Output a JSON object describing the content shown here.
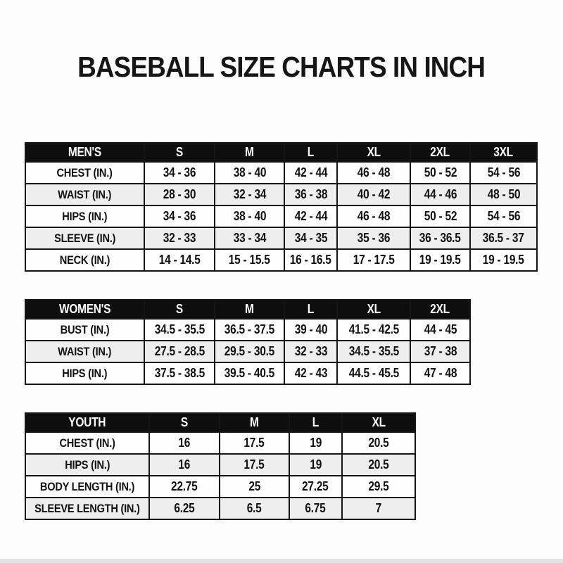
{
  "title": "BASEBALL SIZE CHARTS IN INCH",
  "colors": {
    "table_header_bg": "#0e0e0e",
    "table_header_text": "#ffffff",
    "row_stripe": "#eeeeee",
    "table_border": "#151515",
    "page_bg": "#fcfcfc",
    "bottom_strip": "#e3e3e3"
  },
  "tables": [
    {
      "id": "mens",
      "header_label": "MEN'S",
      "sizes": [
        "S",
        "M",
        "L",
        "XL",
        "2XL",
        "3XL"
      ],
      "rows": [
        {
          "label": "CHEST (IN.)",
          "values": [
            "34 - 36",
            "38 - 40",
            "42 - 44",
            "46 - 48",
            "50 - 52",
            "54 - 56"
          ]
        },
        {
          "label": "WAIST (IN.)",
          "values": [
            "28 - 30",
            "32 - 34",
            "36 - 38",
            "40 - 42",
            "44 - 46",
            "48 - 50"
          ]
        },
        {
          "label": "HIPS (IN.)",
          "values": [
            "34 - 36",
            "38 - 40",
            "42 - 44",
            "46 - 48",
            "50 - 52",
            "54 - 56"
          ]
        },
        {
          "label": "SLEEVE (IN.)",
          "values": [
            "32 - 33",
            "33 - 34",
            "34 - 35",
            "35 - 36",
            "36 - 36.5",
            "36.5 - 37"
          ]
        },
        {
          "label": "NECK (IN.)",
          "values": [
            "14 - 14.5",
            "15 - 15.5",
            "16 - 16.5",
            "17 - 17.5",
            "19 - 19.5",
            "19 - 19.5"
          ]
        }
      ]
    },
    {
      "id": "womens",
      "header_label": "WOMEN'S",
      "sizes": [
        "S",
        "M",
        "L",
        "XL",
        "2XL"
      ],
      "rows": [
        {
          "label": "BUST (IN.)",
          "values": [
            "34.5 - 35.5",
            "36.5 - 37.5",
            "39 - 40",
            "41.5 - 42.5",
            "44 - 45"
          ]
        },
        {
          "label": "WAIST (IN.)",
          "values": [
            "27.5 - 28.5",
            "29.5 - 30.5",
            "32 - 33",
            "34.5 - 35.5",
            "37 - 38"
          ]
        },
        {
          "label": "HIPS (IN.)",
          "values": [
            "37.5 - 38.5",
            "39.5 - 40.5",
            "42 - 43",
            "44.5 - 45.5",
            "47 - 48"
          ]
        }
      ]
    },
    {
      "id": "youth",
      "header_label": "YOUTH",
      "sizes": [
        "S",
        "M",
        "L",
        "XL"
      ],
      "rows": [
        {
          "label": "CHEST (IN.)",
          "values": [
            "16",
            "17.5",
            "19",
            "20.5"
          ]
        },
        {
          "label": "HIPS (IN.)",
          "values": [
            "16",
            "17.5",
            "19",
            "20.5"
          ]
        },
        {
          "label": "BODY LENGTH (IN.)",
          "values": [
            "22.75",
            "25",
            "27.25",
            "29.5"
          ]
        },
        {
          "label": "SLEEVE LENGTH (IN.)",
          "values": [
            "6.25",
            "6.5",
            "6.75",
            "7"
          ]
        }
      ]
    }
  ]
}
